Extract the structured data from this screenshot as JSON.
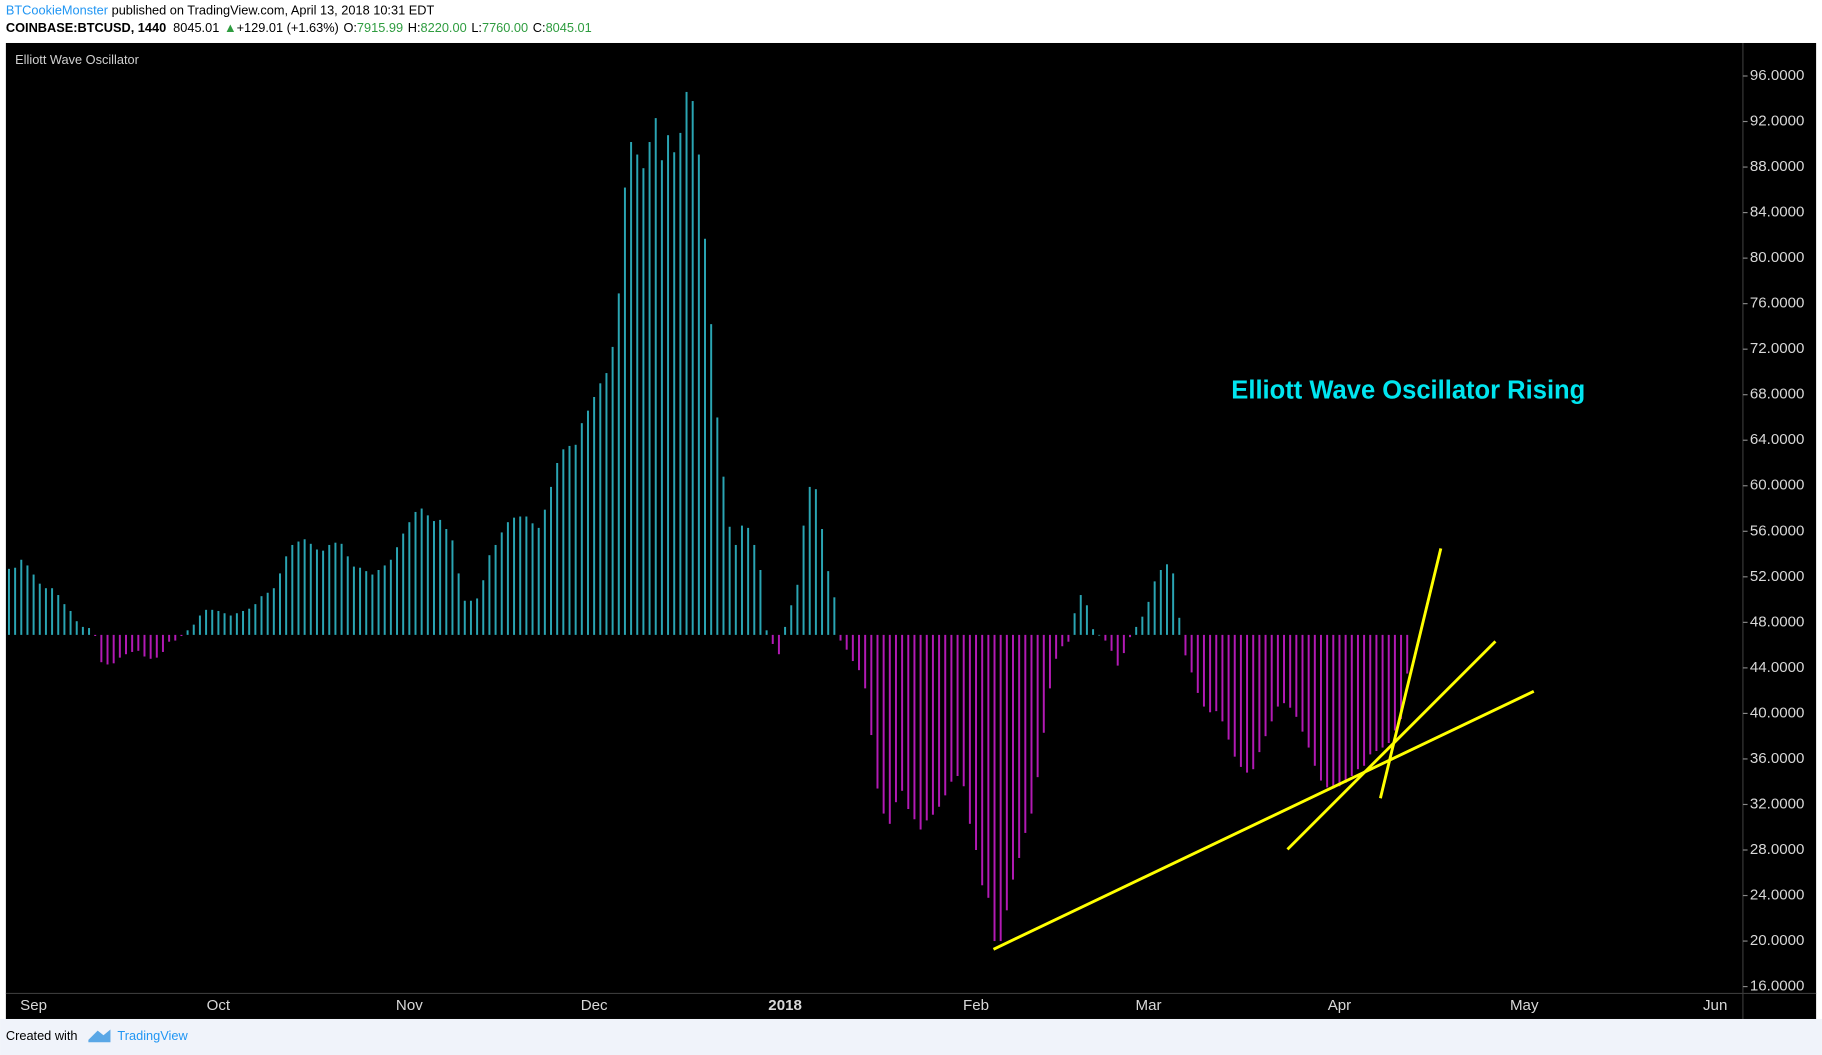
{
  "header": {
    "author": "BTCookieMonster",
    "published": " published on TradingView.com, April 13, 2018 10:31 EDT",
    "symbol": "COINBASE:BTCUSD, 1440",
    "last": "8045.01",
    "arrow": "▲",
    "change": "+129.01 (+1.63%)",
    "open_label": "O:",
    "open": "7915.99",
    "high_label": "H:",
    "high": "8220.00",
    "low_label": "L:",
    "low": "7760.00",
    "close_label": "C:",
    "close": "8045.01"
  },
  "footer": {
    "created": "Created with",
    "brand": "TradingView"
  },
  "chart_data": {
    "type": "bar",
    "title": "Elliott Wave Oscillator",
    "annotation": "Elliott Wave Oscillator Rising",
    "color": "#2aa5b3",
    "negative_color": "#b21ab4",
    "baseline": 46.9,
    "categories": [
      null,
      null,
      null,
      null,
      "Sep",
      null,
      null,
      null,
      null,
      null,
      null,
      null,
      null,
      null,
      null,
      null,
      null,
      null,
      null,
      null,
      null,
      null,
      null,
      null,
      null,
      null,
      null,
      null,
      null,
      null,
      null,
      null,
      null,
      null,
      "Oct",
      null,
      null,
      null,
      null,
      null,
      null,
      null,
      null,
      null,
      null,
      null,
      null,
      null,
      null,
      null,
      null,
      null,
      null,
      null,
      null,
      null,
      null,
      null,
      null,
      null,
      null,
      null,
      null,
      null,
      null,
      "Nov",
      null,
      null,
      null,
      null,
      null,
      null,
      null,
      null,
      null,
      null,
      null,
      null,
      null,
      null,
      null,
      null,
      null,
      null,
      null,
      null,
      null,
      null,
      null,
      null,
      null,
      null,
      null,
      null,
      null,
      "Dec",
      null,
      null,
      null,
      null,
      null,
      null,
      null,
      null,
      null,
      null,
      null,
      null,
      null,
      null,
      null,
      null,
      null,
      null,
      null,
      null,
      null,
      null,
      null,
      null,
      null,
      null,
      null,
      null,
      null,
      null,
      "2018",
      null,
      null,
      null,
      null,
      null,
      null,
      null,
      null,
      null,
      null,
      null,
      null,
      null,
      null,
      null,
      null,
      null,
      null,
      null,
      null,
      null,
      null,
      null,
      null,
      null,
      null,
      null,
      null,
      null,
      null,
      "Feb",
      null,
      null,
      null,
      null,
      null,
      null,
      null,
      null,
      null,
      null,
      null,
      null,
      null,
      null,
      null,
      null,
      null,
      null,
      null,
      null,
      null,
      null,
      null,
      null,
      null,
      null,
      null,
      "Mar",
      null,
      null,
      null,
      null,
      null,
      null,
      null,
      null,
      null,
      null,
      null,
      null,
      null,
      null,
      null,
      null,
      null,
      null,
      null,
      null,
      null,
      null,
      null,
      null,
      null,
      null,
      null,
      null,
      null,
      null,
      "Apr",
      null,
      null,
      null,
      null,
      null,
      null,
      null,
      null,
      null,
      null,
      null,
      null,
      null,
      null,
      null,
      null,
      null,
      null,
      null,
      null,
      null,
      null,
      null,
      null,
      null,
      null,
      null,
      null,
      null,
      "May",
      null,
      null,
      null,
      null,
      null,
      null,
      null,
      null,
      null,
      null,
      null,
      null,
      null,
      null,
      null,
      null,
      null,
      null,
      null,
      null,
      null,
      null,
      null,
      null,
      null,
      null,
      null,
      null,
      null,
      null,
      "Jun",
      null,
      null,
      null,
      null
    ],
    "values": [
      52.7,
      52.8,
      53.5,
      53.0,
      52.2,
      51.4,
      51.0,
      51.0,
      50.4,
      49.6,
      49.0,
      48.1,
      47.6,
      47.5,
      46.8,
      44.5,
      44.3,
      44.4,
      44.9,
      45.2,
      45.4,
      45.5,
      45.0,
      44.8,
      44.9,
      45.4,
      46.3,
      46.4,
      46.8,
      47.3,
      47.8,
      48.6,
      49.1,
      49.1,
      49.0,
      48.8,
      48.6,
      48.8,
      49.0,
      49.2,
      49.6,
      50.3,
      50.6,
      51.0,
      52.3,
      53.8,
      54.8,
      55.1,
      55.3,
      54.9,
      54.4,
      54.3,
      54.8,
      55.0,
      54.9,
      53.8,
      52.9,
      52.8,
      52.5,
      52.2,
      52.6,
      53.0,
      53.5,
      54.6,
      55.8,
      56.8,
      57.7,
      58.0,
      57.4,
      56.9,
      57.0,
      56.2,
      55.2,
      52.3,
      49.9,
      49.9,
      50.1,
      51.7,
      53.9,
      54.8,
      55.9,
      56.8,
      57.2,
      57.3,
      57.3,
      56.7,
      56.3,
      57.9,
      59.9,
      62.0,
      63.2,
      63.5,
      63.6,
      65.5,
      66.6,
      67.8,
      69.0,
      69.9,
      72.2,
      76.9,
      86.2,
      90.2,
      89.1,
      87.9,
      90.2,
      92.3,
      88.6,
      90.8,
      89.3,
      91.0,
      94.6,
      93.8,
      89.1,
      81.7,
      74.2,
      66.0,
      60.8,
      56.4,
      54.8,
      56.5,
      56.3,
      54.8,
      52.6,
      47.3,
      46.1,
      45.2,
      47.6,
      49.5,
      51.3,
      56.5,
      59.9,
      59.7,
      56.2,
      52.5,
      50.2,
      46.4,
      45.6,
      44.6,
      43.8,
      42.2,
      38.1,
      33.4,
      31.2,
      30.3,
      32.2,
      33.2,
      31.6,
      30.7,
      29.8,
      30.6,
      31.1,
      31.8,
      32.8,
      34.0,
      34.5,
      33.6,
      30.3,
      28.0,
      24.9,
      23.8,
      20.0,
      20.0,
      22.7,
      25.4,
      27.3,
      29.5,
      31.2,
      34.4,
      38.3,
      42.2,
      44.8,
      45.9,
      46.3,
      48.8,
      50.4,
      49.5,
      47.4,
      46.9,
      46.4,
      45.5,
      44.2,
      45.3,
      46.7,
      47.6,
      48.5,
      49.8,
      51.6,
      52.6,
      53.1,
      52.3,
      48.4,
      45.1,
      43.6,
      41.8,
      40.6,
      40.1,
      40.2,
      39.3,
      37.7,
      36.2,
      35.3,
      34.8,
      35.1,
      36.6,
      38.0,
      39.3,
      40.6,
      40.9,
      40.5,
      39.7,
      38.4,
      37.0,
      35.4,
      34.1,
      33.5,
      33.4,
      33.6,
      33.9,
      34.5,
      35.1,
      35.4,
      36.4,
      36.7,
      37.0,
      37.4,
      38.5,
      39.5,
      43.5,
      null,
      null,
      null,
      null,
      null,
      null,
      null,
      null,
      null,
      null,
      null,
      null,
      null,
      null,
      null,
      null,
      null,
      null,
      null,
      null,
      null,
      null,
      null,
      null,
      null,
      null,
      null,
      null,
      null,
      null,
      null,
      null,
      null,
      null,
      null,
      null,
      null,
      null,
      null,
      null,
      null,
      null,
      null,
      null,
      null,
      null,
      null,
      null,
      null,
      null,
      null,
      null,
      null,
      null
    ],
    "ylim": [
      15.4,
      98.9
    ],
    "yticks": [
      {
        "value": 16,
        "label": "16.0000"
      },
      {
        "value": 20,
        "label": "20.0000"
      },
      {
        "value": 24,
        "label": "24.0000"
      },
      {
        "value": 28,
        "label": "28.0000"
      },
      {
        "value": 32,
        "label": "32.0000"
      },
      {
        "value": 36,
        "label": "36.0000"
      },
      {
        "value": 40,
        "label": "40.0000"
      },
      {
        "value": 44,
        "label": "44.0000"
      },
      {
        "value": 48,
        "label": "48.0000"
      },
      {
        "value": 52,
        "label": "52.0000"
      },
      {
        "value": 56,
        "label": "56.0000"
      },
      {
        "value": 60,
        "label": "60.0000"
      },
      {
        "value": 64,
        "label": "64.0000"
      },
      {
        "value": 68,
        "label": "68.0000"
      },
      {
        "value": 72,
        "label": "72.0000"
      },
      {
        "value": 76,
        "label": "76.0000"
      },
      {
        "value": 80,
        "label": "80.0000"
      },
      {
        "value": 84,
        "label": "84.0000"
      },
      {
        "value": 88,
        "label": "88.0000"
      },
      {
        "value": 92,
        "label": "92.0000"
      },
      {
        "value": 96,
        "label": "96.0000"
      }
    ],
    "grid": false
  }
}
